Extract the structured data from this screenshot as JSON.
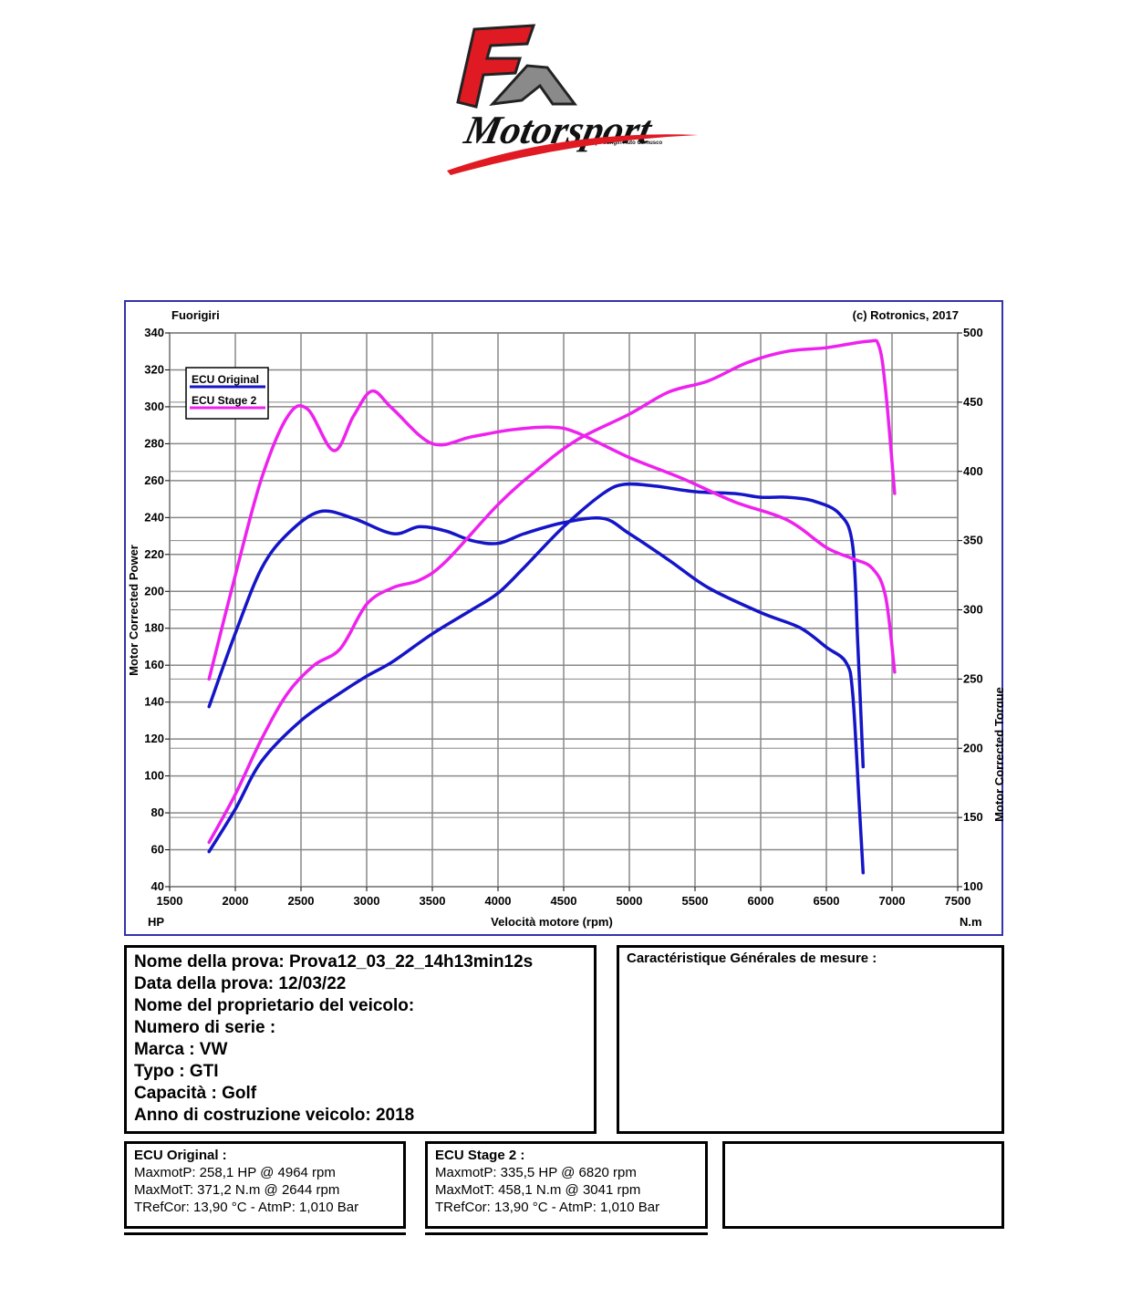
{
  "logo": {
    "brand": "Motorsport",
    "tagline": "By Fuorigiri Auto Cernusco"
  },
  "chart_header": {
    "left": "Fuorigiri",
    "right": "(c) Rotronics, 2017"
  },
  "colors": {
    "original": "#1515c8",
    "stage2": "#ee22ee",
    "grid": "#888888",
    "frame": "#3333aa"
  },
  "chart_data": {
    "type": "line",
    "xlabel": "Velocità motore (rpm)",
    "ylabel_left": "Motor Corrected Power",
    "ylabel_right": "Motor Corrected Torque",
    "unit_left": "HP",
    "unit_right": "N.m",
    "xlim": [
      1500,
      7500
    ],
    "ylim_left": [
      40,
      340
    ],
    "ylim_right": [
      100,
      500
    ],
    "x_ticks": [
      1500,
      2000,
      2500,
      3000,
      3500,
      4000,
      4500,
      5000,
      5500,
      6000,
      6500,
      7000,
      7500
    ],
    "y_ticks_left": [
      40,
      60,
      80,
      100,
      120,
      140,
      160,
      180,
      200,
      220,
      240,
      260,
      280,
      300,
      320,
      340
    ],
    "y_ticks_right": [
      100,
      150,
      200,
      250,
      300,
      350,
      400,
      450,
      500
    ],
    "legend": [
      "ECU Original",
      "ECU Stage 2"
    ],
    "series": [
      {
        "name": "ECU Original",
        "quantity": "power",
        "axis": "left",
        "x": [
          1800,
          2000,
          2200,
          2500,
          2800,
          3000,
          3200,
          3500,
          3800,
          4000,
          4200,
          4500,
          4800,
          4964,
          5200,
          5500,
          5800,
          6000,
          6200,
          6400,
          6600,
          6700,
          6740,
          6780
        ],
        "y": [
          59,
          82,
          108,
          130,
          145,
          154,
          162,
          177,
          190,
          199,
          213,
          235,
          253,
          258,
          257,
          254,
          253,
          251,
          251,
          249,
          242,
          225,
          170,
          105
        ]
      },
      {
        "name": "ECU Original",
        "quantity": "torque",
        "axis": "right",
        "x": [
          1800,
          2000,
          2200,
          2400,
          2644,
          2900,
          3200,
          3400,
          3600,
          3800,
          4000,
          4200,
          4500,
          4800,
          5000,
          5300,
          5600,
          6000,
          6300,
          6500,
          6650,
          6700,
          6750,
          6780
        ],
        "y": [
          230,
          283,
          330,
          355,
          371,
          366,
          355,
          360,
          357,
          350,
          348,
          355,
          363,
          366,
          355,
          336,
          316,
          298,
          287,
          273,
          262,
          240,
          160,
          110
        ]
      },
      {
        "name": "ECU Stage 2",
        "quantity": "power",
        "axis": "left",
        "x": [
          1800,
          2000,
          2200,
          2400,
          2600,
          2800,
          3000,
          3200,
          3400,
          3600,
          4000,
          4300,
          4600,
          5000,
          5300,
          5600,
          5900,
          6200,
          6500,
          6820,
          6900,
          6950,
          7020
        ],
        "y": [
          64,
          90,
          120,
          145,
          160,
          169,
          193,
          202,
          206,
          216,
          247,
          266,
          282,
          296,
          308,
          314,
          324,
          330,
          332,
          335.5,
          333,
          310,
          253
        ]
      },
      {
        "name": "ECU Stage 2",
        "quantity": "torque",
        "axis": "right",
        "x": [
          1800,
          2000,
          2200,
          2400,
          2550,
          2750,
          2900,
          3041,
          3200,
          3500,
          3800,
          4100,
          4400,
          4600,
          5000,
          5400,
          5800,
          6200,
          6500,
          6700,
          6850,
          6950,
          7020
        ],
        "y": [
          250,
          325,
          395,
          440,
          445,
          415,
          440,
          458,
          445,
          420,
          425,
          430,
          432,
          428,
          410,
          395,
          378,
          365,
          345,
          337,
          330,
          310,
          255
        ]
      }
    ]
  },
  "info": {
    "lines": [
      "Nome della prova: Prova12_03_22_14h13min12s",
      "Data della prova: 12/03/22",
      "Nome del proprietario del veicolo:",
      "Numero di serie  :",
      "Marca  : VW",
      "Typo  : GTI",
      "Capacità  : Golf",
      "Anno di costruzione veicolo: 2018"
    ]
  },
  "mesure": {
    "title": "Caractéristique Générales de mesure :"
  },
  "results": {
    "original": {
      "title": "ECU Original :",
      "lines": [
        "MaxmotP: 258,1 HP @ 4964 rpm",
        "MaxMotT: 371,2 N.m @ 2644 rpm",
        "TRefCor: 13,90 °C - AtmP: 1,010 Bar"
      ]
    },
    "stage2": {
      "title": "ECU Stage 2 :",
      "lines": [
        "MaxmotP: 335,5 HP @ 6820 rpm",
        "MaxMotT: 458,1 N.m @ 3041 rpm",
        "TRefCor: 13,90 °C - AtmP: 1,010 Bar"
      ]
    }
  }
}
